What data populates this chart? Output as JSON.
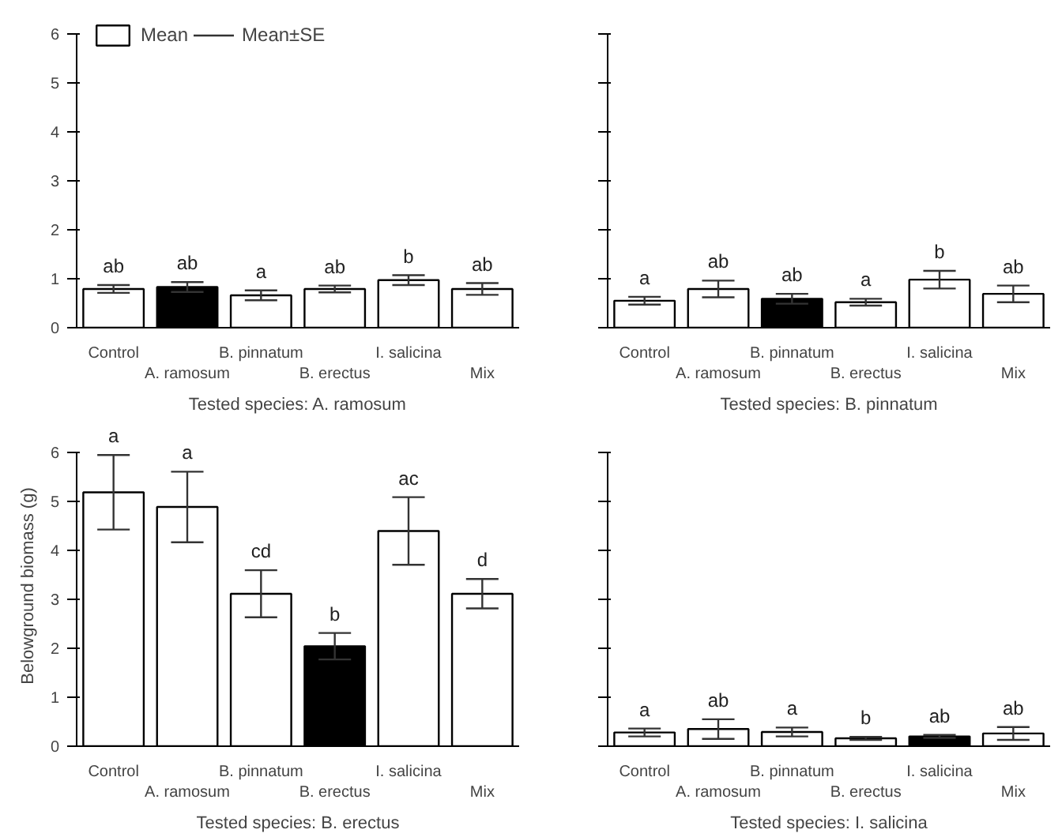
{
  "chart_data": [
    {
      "type": "bar",
      "xlabel": "Tested species: A. ramosum",
      "categories": [
        "Control",
        "A. ramosum",
        "B. pinnatum",
        "B. erectus",
        "I. salicina",
        "Mix"
      ],
      "ylim": [
        0,
        6
      ],
      "yticks": [
        0,
        1,
        2,
        3,
        4,
        5,
        6
      ],
      "grid": false,
      "legend": "top left",
      "annotations": [
        "Mean±SE"
      ],
      "series": [
        {
          "name": "Mean",
          "values": [
            0.79,
            0.83,
            0.66,
            0.79,
            0.97,
            0.79
          ],
          "colors": [
            "#ffffff",
            "#000000",
            "#ffffff",
            "#ffffff",
            "#ffffff",
            "#ffffff"
          ],
          "errors": [
            0.08,
            0.1,
            0.1,
            0.07,
            0.1,
            0.12
          ],
          "value_labels": [
            "ab",
            "ab",
            "a",
            "ab",
            "b",
            "ab"
          ]
        }
      ]
    },
    {
      "type": "bar",
      "xlabel": "Tested species: B. pinnatum",
      "categories": [
        "Control",
        "A. ramosum",
        "B. pinnatum",
        "B. erectus",
        "I. salicina",
        "Mix"
      ],
      "ylim": [
        0,
        6
      ],
      "yticks": [
        0,
        1,
        2,
        3,
        4,
        5,
        6
      ],
      "grid": false,
      "tick_labels": "x",
      "series": [
        {
          "values": [
            0.55,
            0.79,
            0.59,
            0.52,
            0.98,
            0.69
          ],
          "colors": [
            "#ffffff",
            "#ffffff",
            "#000000",
            "#ffffff",
            "#ffffff",
            "#ffffff"
          ],
          "errors": [
            0.08,
            0.17,
            0.1,
            0.07,
            0.18,
            0.17
          ],
          "value_labels": [
            "a",
            "ab",
            "ab",
            "a",
            "b",
            "ab"
          ]
        }
      ]
    },
    {
      "type": "bar",
      "xlabel": "Tested species: B. erectus",
      "ylabel": "Belowground biomass (g)",
      "categories": [
        "Control",
        "A. ramosum",
        "B. pinnatum",
        "B. erectus",
        "I. salicina",
        "Mix"
      ],
      "ylim": [
        0,
        6
      ],
      "yticks": [
        0,
        1,
        2,
        3,
        4,
        5,
        6
      ],
      "grid": false,
      "series": [
        {
          "values": [
            5.18,
            4.88,
            3.11,
            2.04,
            4.39,
            3.11
          ],
          "colors": [
            "#ffffff",
            "#ffffff",
            "#ffffff",
            "#000000",
            "#ffffff",
            "#ffffff"
          ],
          "errors": [
            0.76,
            0.72,
            0.48,
            0.27,
            0.69,
            0.3
          ],
          "value_labels": [
            "a",
            "a",
            "cd",
            "b",
            "ac",
            "d"
          ]
        }
      ]
    },
    {
      "type": "bar",
      "xlabel": "Tested species: I. salicina",
      "categories": [
        "Control",
        "A. ramosum",
        "B. pinnatum",
        "B. erectus",
        "I. salicina",
        "Mix"
      ],
      "ylim": [
        0,
        6
      ],
      "yticks": [
        0,
        1,
        2,
        3,
        4,
        5,
        6
      ],
      "grid": false,
      "tick_labels": "x",
      "series": [
        {
          "values": [
            0.28,
            0.35,
            0.29,
            0.16,
            0.2,
            0.26
          ],
          "colors": [
            "#ffffff",
            "#ffffff",
            "#ffffff",
            "#ffffff",
            "#000000",
            "#ffffff"
          ],
          "errors": [
            0.08,
            0.2,
            0.09,
            0.03,
            0.03,
            0.13
          ],
          "value_labels": [
            "a",
            "ab",
            "a",
            "b",
            "ab",
            "ab"
          ]
        }
      ]
    }
  ]
}
